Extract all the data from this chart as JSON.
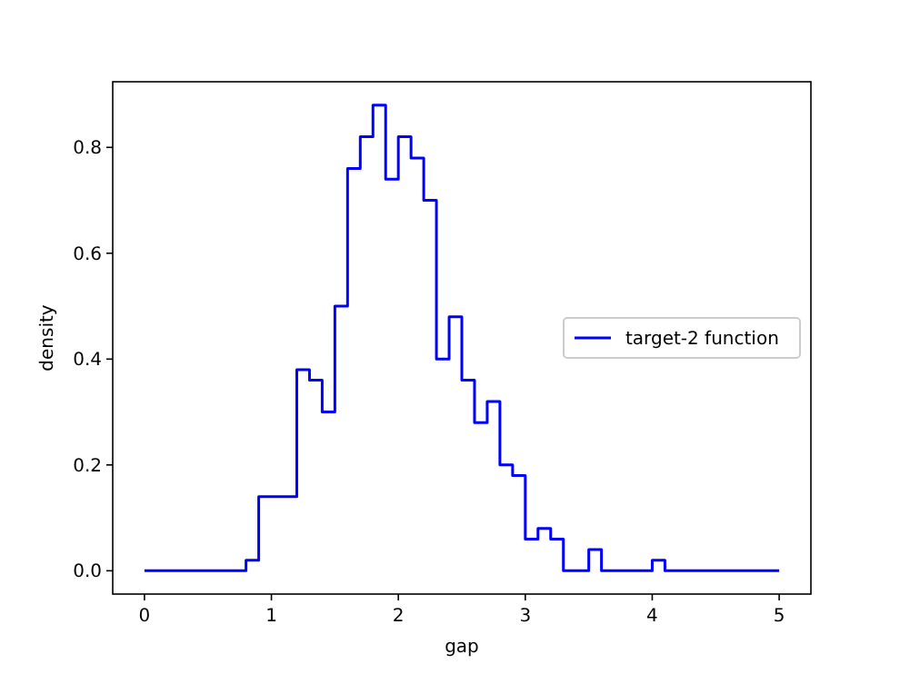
{
  "chart_data": {
    "type": "histogram",
    "xlabel": "gap",
    "ylabel": "density",
    "bins": [
      0,
      0.1,
      0.2,
      0.3,
      0.4,
      0.5,
      0.6,
      0.7,
      0.8,
      0.9,
      1.0,
      1.1,
      1.2,
      1.3,
      1.4,
      1.5,
      1.6,
      1.7,
      1.8,
      1.9,
      2.0,
      2.1,
      2.2,
      2.3,
      2.4,
      2.5,
      2.6,
      2.7,
      2.8,
      2.9,
      3.0,
      3.1,
      3.2,
      3.3,
      3.4,
      3.5,
      3.6,
      3.7,
      3.8,
      3.9,
      4.0,
      4.1,
      4.2,
      4.3,
      4.4,
      4.5,
      4.6,
      4.7,
      4.8,
      4.9,
      5.0
    ],
    "series": [
      {
        "name": "target-2 function",
        "color": "#0000ff",
        "values": [
          0,
          0,
          0,
          0,
          0,
          0,
          0,
          0,
          0.02,
          0.14,
          0.14,
          0.14,
          0.38,
          0.36,
          0.3,
          0.5,
          0.76,
          0.82,
          0.88,
          0.74,
          0.82,
          0.78,
          0.7,
          0.4,
          0.48,
          0.36,
          0.28,
          0.32,
          0.2,
          0.18,
          0.06,
          0.08,
          0.06,
          0,
          0,
          0.04,
          0,
          0,
          0,
          0,
          0.02,
          0,
          0,
          0,
          0,
          0,
          0,
          0,
          0,
          0
        ]
      }
    ],
    "xlim": [
      -0.25,
      5.25
    ],
    "xticks": [
      0,
      1,
      2,
      3,
      4,
      5
    ],
    "ylim": [
      -0.044,
      0.924
    ],
    "yticks": [
      {
        "value": 0,
        "label": "0.0"
      },
      {
        "value": 0.2,
        "label": "0.2"
      },
      {
        "value": 0.4,
        "label": "0.4"
      },
      {
        "value": 0.6,
        "label": "0.6"
      },
      {
        "value": 0.8,
        "label": "0.8"
      }
    ],
    "legend": "right",
    "grid": false
  }
}
